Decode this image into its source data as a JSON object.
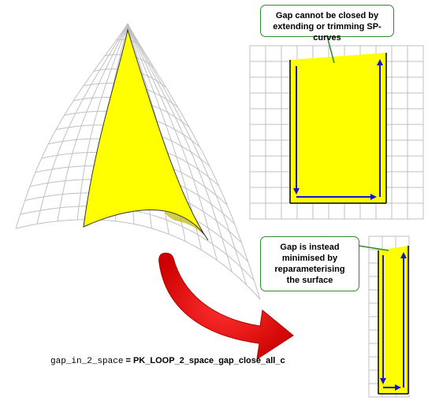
{
  "callouts": {
    "top": {
      "line1": "Gap cannot be closed by",
      "line2": "extending or trimming SP-curves"
    },
    "bottom": {
      "line1": "Gap is instead",
      "line2": "minimised by",
      "line3": "reparameterising",
      "line4": "the surface"
    }
  },
  "formula": {
    "variable": "gap_in_2_space",
    "equals": " = ",
    "value": "PK_LOOP_2_space_gap_close_all_c"
  },
  "colors": {
    "face_fill": "#ffff00",
    "grid_line": "#c0c0c0",
    "loop_arrow": "#1414cc",
    "callout_border": "#2e8b2e",
    "big_arrow": "#ee0000"
  }
}
